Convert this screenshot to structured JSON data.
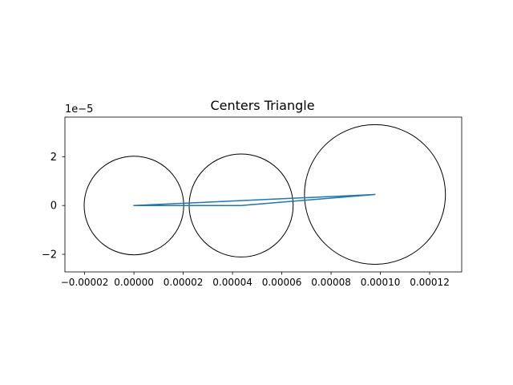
{
  "chart_data": {
    "type": "line",
    "title": "Centers Triangle",
    "xlabel": "",
    "ylabel": "",
    "x_offset_text": "",
    "y_offset_text": "1e−5",
    "xlim": [
      -2.8e-05,
      0.000133
    ],
    "ylim": [
      -2.72e-05,
      3.62e-05
    ],
    "grid": false,
    "aspect": "equal",
    "xticks": [
      {
        "value": -2e-05,
        "label": "−0.00002"
      },
      {
        "value": 0.0,
        "label": "0.00000"
      },
      {
        "value": 2e-05,
        "label": "0.00002"
      },
      {
        "value": 4e-05,
        "label": "0.00004"
      },
      {
        "value": 6e-05,
        "label": "0.00006"
      },
      {
        "value": 8e-05,
        "label": "0.00008"
      },
      {
        "value": 0.0001,
        "label": "0.00010"
      },
      {
        "value": 0.00012,
        "label": "0.00012"
      }
    ],
    "yticks": [
      {
        "value": 2e-05,
        "label": "2"
      },
      {
        "value": 0.0,
        "label": "0"
      },
      {
        "value": -2e-05,
        "label": "−2"
      }
    ],
    "circles": [
      {
        "cx": 0.0,
        "cy": 0.0,
        "r": 2.02e-05,
        "edge_color": "#000000"
      },
      {
        "cx": 4.35e-05,
        "cy": 0.0,
        "r": 2.11e-05,
        "edge_color": "#000000"
      },
      {
        "cx": 9.78e-05,
        "cy": 4.5e-06,
        "r": 2.86e-05,
        "edge_color": "#000000"
      }
    ],
    "series": [
      {
        "color": "#1f77b4",
        "x": [
          0.0,
          4.35e-05,
          9.78e-05,
          0.0
        ],
        "y": [
          0.0,
          0.0,
          4.5e-06,
          0.0
        ]
      }
    ]
  }
}
